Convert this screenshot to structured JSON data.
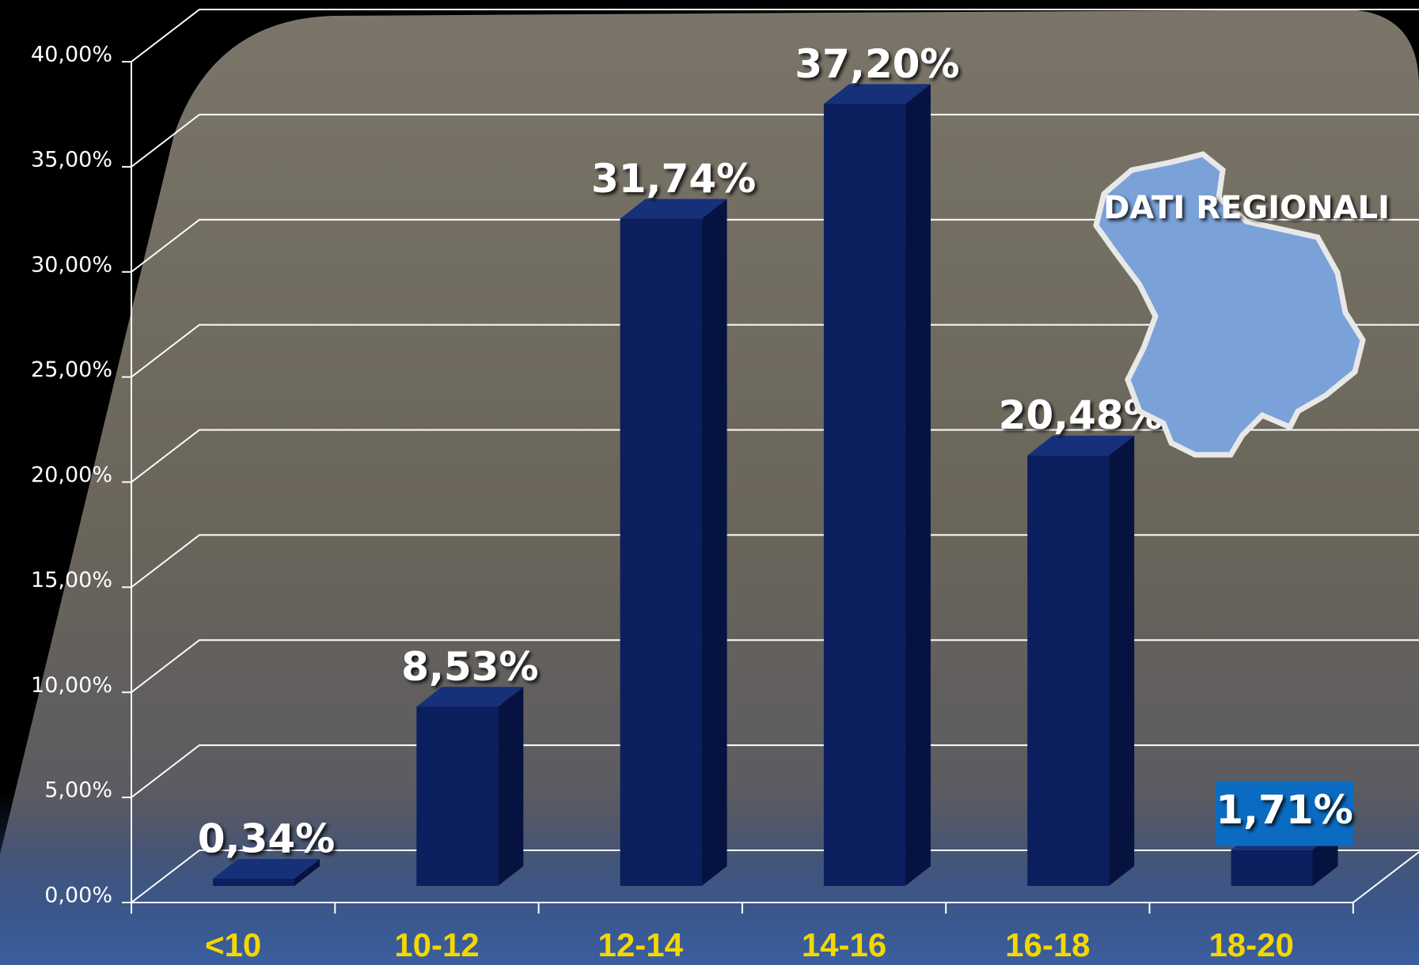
{
  "chart_data": {
    "type": "bar",
    "categories": [
      "<10",
      "10-12",
      "12-14",
      "14-16",
      "16-18",
      "18-20"
    ],
    "values": [
      0.34,
      8.53,
      31.74,
      37.2,
      20.48,
      1.71
    ],
    "value_labels": [
      "0,34%",
      "8,53%",
      "31,74%",
      "37,20%",
      "20,48%",
      "1,71%"
    ],
    "color": "#0b1f5e",
    "category_color": "#f3d800",
    "ylim": [
      0,
      40
    ],
    "yticks": [
      {
        "value": 0,
        "label": "0,00%"
      },
      {
        "value": 5,
        "label": "5,00%"
      },
      {
        "value": 10,
        "label": "10,00%"
      },
      {
        "value": 15,
        "label": "15,00%"
      },
      {
        "value": 20,
        "label": "20,00%"
      },
      {
        "value": 25,
        "label": "25,00%"
      },
      {
        "value": 30,
        "label": "30,00%"
      },
      {
        "value": 35,
        "label": "35,00%"
      },
      {
        "value": 40,
        "label": "40,00%"
      }
    ],
    "grid": true,
    "annotation": "DATI REGIONALI"
  }
}
